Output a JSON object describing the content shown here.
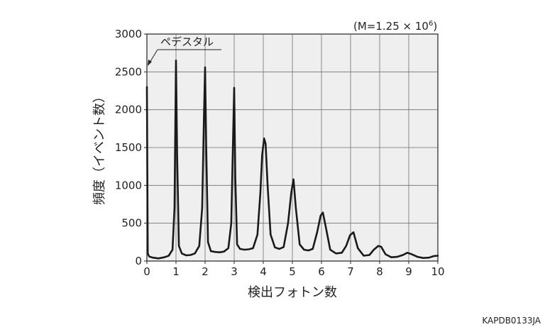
{
  "chart_data": {
    "type": "line",
    "xlabel": "検出フォトン数",
    "ylabel": "頻度（イベント数）",
    "xlim": [
      0,
      10
    ],
    "ylim": [
      0,
      3000
    ],
    "x_ticks": [
      0,
      1,
      2,
      3,
      4,
      5,
      6,
      7,
      8,
      9,
      10
    ],
    "y_ticks": [
      0,
      500,
      1000,
      1500,
      2000,
      2500,
      3000
    ],
    "grid": true,
    "annotation_pedestal": "ペデスタル",
    "annotation_gain_prefix": "(M=1.25 × 10",
    "annotation_gain_exp": "6",
    "annotation_gain_suffix": ")",
    "image_code": "KAPDB0133JA",
    "series": [
      {
        "x": [
          0,
          0.03,
          0.08,
          0.2,
          0.4,
          0.6,
          0.75,
          0.88,
          0.95,
          1.0,
          1.04,
          1.1,
          1.2,
          1.35,
          1.5,
          1.65,
          1.8,
          1.9,
          1.96,
          2.0,
          2.04,
          2.1,
          2.2,
          2.35,
          2.5,
          2.65,
          2.8,
          2.9,
          2.96,
          3.0,
          3.04,
          3.1,
          3.2,
          3.35,
          3.5,
          3.65,
          3.8,
          3.9,
          3.96,
          4.03,
          4.08,
          4.15,
          4.25,
          4.4,
          4.55,
          4.7,
          4.85,
          4.96,
          5.04,
          5.12,
          5.25,
          5.4,
          5.55,
          5.7,
          5.85,
          5.97,
          6.05,
          6.15,
          6.3,
          6.5,
          6.7,
          6.85,
          6.98,
          7.1,
          7.25,
          7.45,
          7.65,
          7.8,
          7.95,
          8.05,
          8.2,
          8.4,
          8.6,
          8.8,
          8.95,
          9.1,
          9.3,
          9.5,
          9.7,
          9.85,
          10.0
        ],
        "values": [
          2300,
          100,
          60,
          45,
          35,
          50,
          70,
          150,
          700,
          2650,
          1400,
          200,
          100,
          75,
          80,
          100,
          200,
          700,
          1900,
          2560,
          1500,
          250,
          130,
          120,
          115,
          125,
          170,
          500,
          1600,
          2290,
          1100,
          220,
          160,
          150,
          155,
          170,
          350,
          900,
          1400,
          1620,
          1550,
          1000,
          350,
          180,
          160,
          185,
          500,
          900,
          1080,
          700,
          220,
          150,
          140,
          160,
          380,
          600,
          640,
          450,
          150,
          100,
          110,
          200,
          340,
          380,
          170,
          70,
          80,
          150,
          200,
          190,
          90,
          50,
          55,
          80,
          110,
          90,
          55,
          40,
          45,
          65,
          70
        ]
      }
    ]
  }
}
